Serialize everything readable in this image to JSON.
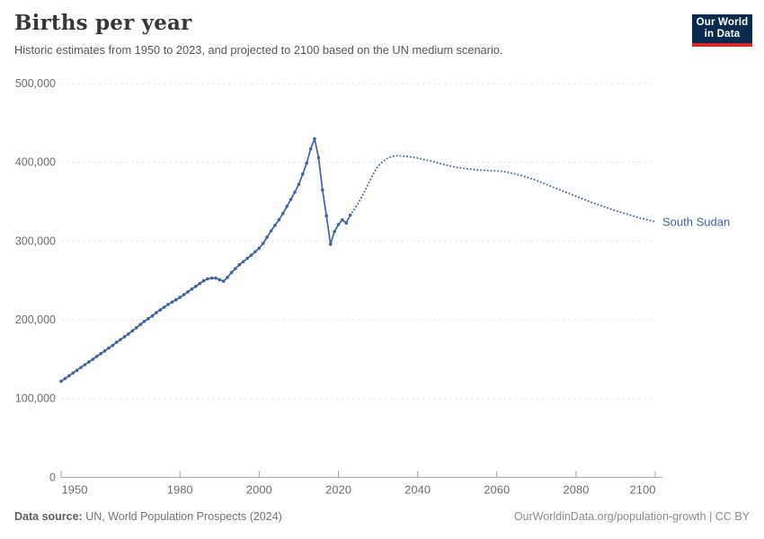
{
  "header": {
    "title": "Births per year",
    "subtitle": "Historic estimates from 1950 to 2023, and projected to 2100 based on the UN medium scenario.",
    "logo_line1": "Our World",
    "logo_line2": "in Data"
  },
  "footer": {
    "source_label": "Data source:",
    "source_text": " UN, World Population Prospects (2024)",
    "right_text": "OurWorldinData.org/population-growth | CC BY"
  },
  "colors": {
    "series_line": "#4062a0",
    "entity_label": "#3d63a6",
    "grid": "#e2e2e2",
    "axis": "#a3a3a3",
    "tick_text": "#6e6e6e",
    "logo_navy": "#0a2a4d",
    "logo_red": "#d92a2a"
  },
  "chart_data": {
    "type": "line",
    "title": "Births per year",
    "entity_label": "South Sudan",
    "xlabel": "",
    "ylabel": "",
    "xlim": [
      1950,
      2100
    ],
    "ylim": [
      0,
      500000
    ],
    "grid": "horizontal-dashed",
    "legend_position": "right-of-line",
    "x_ticks": [
      1950,
      1980,
      2000,
      2020,
      2040,
      2060,
      2080,
      2100
    ],
    "x_tick_labels": [
      "1950",
      "1980",
      "2000",
      "2020",
      "2040",
      "2060",
      "2080",
      "2100"
    ],
    "y_ticks": [
      0,
      100000,
      200000,
      300000,
      400000,
      500000
    ],
    "y_tick_labels": [
      "0",
      "100,000",
      "200,000",
      "300,000",
      "400,000",
      "500,000"
    ],
    "series": [
      {
        "name": "historic estimates (1950-2023)",
        "style": "solid",
        "markers": true,
        "points": [
          [
            1950,
            122000
          ],
          [
            1951,
            125500
          ],
          [
            1952,
            129000
          ],
          [
            1953,
            132500
          ],
          [
            1954,
            136000
          ],
          [
            1955,
            139500
          ],
          [
            1956,
            143000
          ],
          [
            1957,
            146500
          ],
          [
            1958,
            150000
          ],
          [
            1959,
            153500
          ],
          [
            1960,
            157000
          ],
          [
            1961,
            160500
          ],
          [
            1962,
            164000
          ],
          [
            1963,
            167500
          ],
          [
            1964,
            171500
          ],
          [
            1965,
            175000
          ],
          [
            1966,
            178500
          ],
          [
            1967,
            182000
          ],
          [
            1968,
            186000
          ],
          [
            1969,
            190000
          ],
          [
            1970,
            194000
          ],
          [
            1971,
            198000
          ],
          [
            1972,
            201500
          ],
          [
            1973,
            205000
          ],
          [
            1974,
            209000
          ],
          [
            1975,
            212500
          ],
          [
            1976,
            216000
          ],
          [
            1977,
            219500
          ],
          [
            1978,
            222500
          ],
          [
            1979,
            225500
          ],
          [
            1980,
            228500
          ],
          [
            1981,
            232000
          ],
          [
            1982,
            235500
          ],
          [
            1983,
            239000
          ],
          [
            1984,
            242500
          ],
          [
            1985,
            246000
          ],
          [
            1986,
            249500
          ],
          [
            1987,
            252000
          ],
          [
            1988,
            253000
          ],
          [
            1989,
            253000
          ],
          [
            1990,
            251000
          ],
          [
            1991,
            249000
          ],
          [
            1992,
            254000
          ],
          [
            1993,
            260000
          ],
          [
            1994,
            265000
          ],
          [
            1995,
            270000
          ],
          [
            1996,
            274000
          ],
          [
            1997,
            278000
          ],
          [
            1998,
            282000
          ],
          [
            1999,
            286500
          ],
          [
            2000,
            291000
          ],
          [
            2001,
            297000
          ],
          [
            2002,
            305000
          ],
          [
            2003,
            313000
          ],
          [
            2004,
            320000
          ],
          [
            2005,
            327000
          ],
          [
            2006,
            335000
          ],
          [
            2007,
            344000
          ],
          [
            2008,
            353000
          ],
          [
            2009,
            362000
          ],
          [
            2010,
            372000
          ],
          [
            2011,
            385000
          ],
          [
            2012,
            399000
          ],
          [
            2013,
            417000
          ],
          [
            2014,
            430000
          ],
          [
            2015,
            406000
          ],
          [
            2016,
            365000
          ],
          [
            2017,
            332000
          ],
          [
            2018,
            296000
          ],
          [
            2019,
            312000
          ],
          [
            2020,
            321000
          ],
          [
            2021,
            327000
          ],
          [
            2022,
            323000
          ],
          [
            2023,
            333000
          ]
        ]
      },
      {
        "name": "UN medium scenario projection (2023-2100)",
        "style": "dotted",
        "markers": false,
        "points": [
          [
            2023,
            333000
          ],
          [
            2024,
            340000
          ],
          [
            2025,
            348000
          ],
          [
            2026,
            357000
          ],
          [
            2027,
            367000
          ],
          [
            2028,
            377000
          ],
          [
            2029,
            387000
          ],
          [
            2030,
            395000
          ],
          [
            2031,
            400000
          ],
          [
            2032,
            404000
          ],
          [
            2033,
            406500
          ],
          [
            2034,
            408000
          ],
          [
            2035,
            408500
          ],
          [
            2036,
            408000
          ],
          [
            2038,
            407000
          ],
          [
            2040,
            405500
          ],
          [
            2042,
            403000
          ],
          [
            2044,
            401000
          ],
          [
            2046,
            398000
          ],
          [
            2048,
            395500
          ],
          [
            2050,
            393500
          ],
          [
            2052,
            392000
          ],
          [
            2054,
            391000
          ],
          [
            2056,
            390000
          ],
          [
            2058,
            389500
          ],
          [
            2060,
            389000
          ],
          [
            2062,
            388000
          ],
          [
            2064,
            386000
          ],
          [
            2066,
            383500
          ],
          [
            2068,
            380500
          ],
          [
            2070,
            377000
          ],
          [
            2072,
            373000
          ],
          [
            2074,
            369000
          ],
          [
            2076,
            365000
          ],
          [
            2078,
            361000
          ],
          [
            2080,
            357000
          ],
          [
            2082,
            353000
          ],
          [
            2084,
            349000
          ],
          [
            2086,
            345500
          ],
          [
            2088,
            342000
          ],
          [
            2090,
            338500
          ],
          [
            2092,
            335500
          ],
          [
            2094,
            332500
          ],
          [
            2096,
            329500
          ],
          [
            2098,
            327000
          ],
          [
            2100,
            324500
          ]
        ]
      }
    ]
  }
}
